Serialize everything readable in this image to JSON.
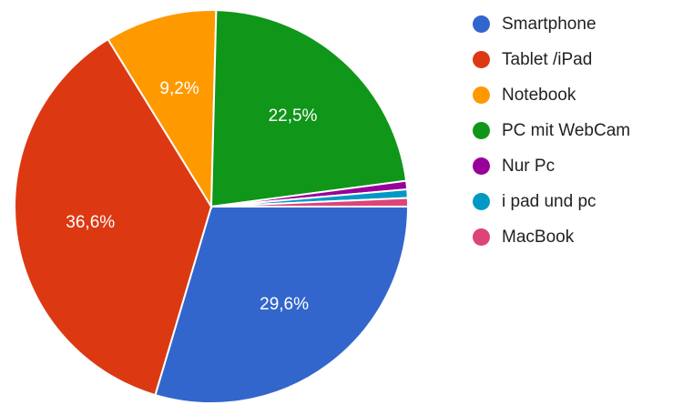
{
  "chart_data": {
    "type": "pie",
    "title": "",
    "slices": [
      {
        "label": "Smartphone",
        "value": 29.6,
        "display": "29,6%",
        "color": "#3366cc"
      },
      {
        "label": "Tablet /iPad",
        "value": 36.6,
        "display": "36,6%",
        "color": "#dc3912"
      },
      {
        "label": "Notebook",
        "value": 9.2,
        "display": "9,2%",
        "color": "#ff9900"
      },
      {
        "label": "PC mit WebCam",
        "value": 22.5,
        "display": "22,5%",
        "color": "#109618"
      },
      {
        "label": "Nur Pc",
        "value": 0.7,
        "display": "",
        "color": "#990099"
      },
      {
        "label": "i pad und pc",
        "value": 0.7,
        "display": "",
        "color": "#0099c6"
      },
      {
        "label": "MacBook",
        "value": 0.7,
        "display": "",
        "color": "#dd4477"
      }
    ],
    "legend_position": "right"
  }
}
